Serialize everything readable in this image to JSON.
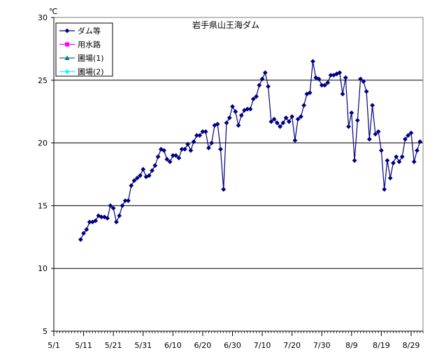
{
  "chart_data": {
    "type": "line",
    "title": "岩手県山王海ダム",
    "ylabel": "℃",
    "xlabel": "",
    "ylim": [
      5,
      30
    ],
    "yticks": [
      5,
      10,
      15,
      20,
      25,
      30
    ],
    "xlim": [
      "5/1",
      "9/2"
    ],
    "xtick_labels": [
      "5/1",
      "5/11",
      "5/21",
      "5/31",
      "6/10",
      "6/20",
      "6/30",
      "7/10",
      "7/20",
      "7/30",
      "8/9",
      "8/19",
      "8/29"
    ],
    "grid": "horizontal",
    "legend_position": "top-left",
    "series": [
      {
        "name": "ダム等",
        "color": "#000080",
        "marker": "diamond",
        "points": [
          [
            "5/10",
            12.3
          ],
          [
            "5/11",
            12.8
          ],
          [
            "5/12",
            13.1
          ],
          [
            "5/13",
            13.7
          ],
          [
            "5/14",
            13.7
          ],
          [
            "5/15",
            13.8
          ],
          [
            "5/16",
            14.2
          ],
          [
            "5/17",
            14.1
          ],
          [
            "5/18",
            14.1
          ],
          [
            "5/19",
            14.0
          ],
          [
            "5/20",
            15.0
          ],
          [
            "5/21",
            14.8
          ],
          [
            "5/22",
            13.7
          ],
          [
            "5/23",
            14.2
          ],
          [
            "5/24",
            15.0
          ],
          [
            "5/25",
            15.4
          ],
          [
            "5/26",
            15.4
          ],
          [
            "5/27",
            16.6
          ],
          [
            "5/28",
            17.0
          ],
          [
            "5/29",
            17.2
          ],
          [
            "5/30",
            17.4
          ],
          [
            "5/31",
            17.9
          ],
          [
            "6/1",
            17.3
          ],
          [
            "6/2",
            17.4
          ],
          [
            "6/3",
            17.8
          ],
          [
            "6/4",
            18.2
          ],
          [
            "6/5",
            18.9
          ],
          [
            "6/6",
            19.5
          ],
          [
            "6/7",
            19.4
          ],
          [
            "6/8",
            18.7
          ],
          [
            "6/9",
            18.5
          ],
          [
            "6/10",
            19.0
          ],
          [
            "6/11",
            19.0
          ],
          [
            "6/12",
            18.8
          ],
          [
            "6/13",
            19.5
          ],
          [
            "6/14",
            19.5
          ],
          [
            "6/15",
            19.9
          ],
          [
            "6/16",
            19.4
          ],
          [
            "6/17",
            20.1
          ],
          [
            "6/18",
            20.6
          ],
          [
            "6/19",
            20.6
          ],
          [
            "6/20",
            20.9
          ],
          [
            "6/21",
            20.9
          ],
          [
            "6/22",
            19.6
          ],
          [
            "6/23",
            20.0
          ],
          [
            "6/24",
            21.4
          ],
          [
            "6/25",
            21.5
          ],
          [
            "6/26",
            19.5
          ],
          [
            "6/27",
            16.3
          ],
          [
            "6/28",
            21.6
          ],
          [
            "6/29",
            22.0
          ],
          [
            "6/30",
            22.9
          ],
          [
            "7/1",
            22.5
          ],
          [
            "7/2",
            21.4
          ],
          [
            "7/3",
            22.2
          ],
          [
            "7/4",
            22.6
          ],
          [
            "7/5",
            22.7
          ],
          [
            "7/6",
            22.7
          ],
          [
            "7/7",
            23.5
          ],
          [
            "7/8",
            23.7
          ],
          [
            "7/9",
            24.6
          ],
          [
            "7/10",
            25.1
          ],
          [
            "7/11",
            25.6
          ],
          [
            "7/12",
            24.5
          ],
          [
            "7/13",
            21.7
          ],
          [
            "7/14",
            21.9
          ],
          [
            "7/15",
            21.6
          ],
          [
            "7/16",
            21.3
          ],
          [
            "7/17",
            21.6
          ],
          [
            "7/18",
            22.0
          ],
          [
            "7/19",
            21.7
          ],
          [
            "7/20",
            22.1
          ],
          [
            "7/21",
            20.2
          ],
          [
            "7/22",
            21.9
          ],
          [
            "7/23",
            22.1
          ],
          [
            "7/24",
            23.0
          ],
          [
            "7/25",
            23.9
          ],
          [
            "7/26",
            24.0
          ],
          [
            "7/27",
            26.5
          ],
          [
            "7/28",
            25.2
          ],
          [
            "7/29",
            25.1
          ],
          [
            "7/30",
            24.6
          ],
          [
            "7/31",
            24.6
          ],
          [
            "8/1",
            24.8
          ],
          [
            "8/2",
            25.4
          ],
          [
            "8/3",
            25.4
          ],
          [
            "8/4",
            25.5
          ],
          [
            "8/5",
            25.6
          ],
          [
            "8/6",
            23.9
          ],
          [
            "8/7",
            25.2
          ],
          [
            "8/8",
            21.3
          ],
          [
            "8/9",
            22.4
          ],
          [
            "8/10",
            18.6
          ],
          [
            "8/11",
            21.8
          ],
          [
            "8/12",
            25.1
          ],
          [
            "8/13",
            24.9
          ],
          [
            "8/14",
            24.1
          ],
          [
            "8/15",
            20.3
          ],
          [
            "8/16",
            23.0
          ],
          [
            "8/17",
            20.7
          ],
          [
            "8/18",
            20.9
          ],
          [
            "8/19",
            19.4
          ],
          [
            "8/20",
            16.3
          ],
          [
            "8/21",
            18.6
          ],
          [
            "8/22",
            17.2
          ],
          [
            "8/23",
            18.4
          ],
          [
            "8/24",
            18.9
          ],
          [
            "8/25",
            18.5
          ],
          [
            "8/26",
            18.9
          ],
          [
            "8/27",
            20.3
          ],
          [
            "8/28",
            20.6
          ],
          [
            "8/29",
            20.8
          ],
          [
            "8/30",
            18.5
          ],
          [
            "8/31",
            19.4
          ],
          [
            "9/1",
            20.1
          ]
        ]
      },
      {
        "name": "用水路",
        "color": "#FF00FF",
        "marker": "square",
        "points": []
      },
      {
        "name": "圃場(1)",
        "color": "#008080",
        "marker": "triangle",
        "points": []
      },
      {
        "name": "圃場(2)",
        "color": "#00FFFF",
        "marker": "diamond",
        "points": []
      }
    ]
  }
}
